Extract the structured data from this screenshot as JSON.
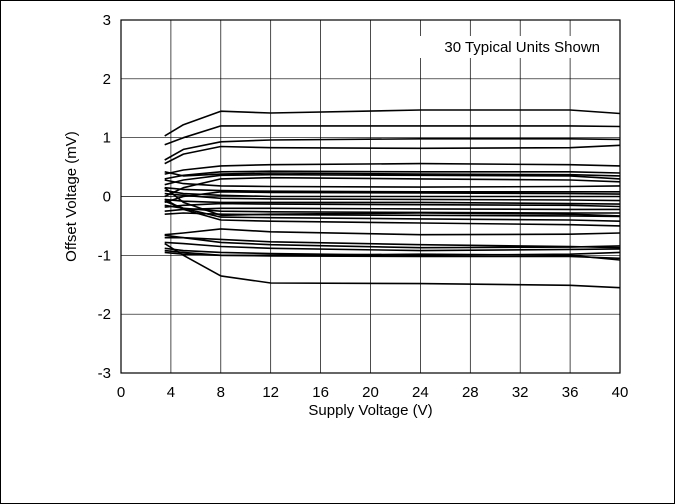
{
  "chart_data": {
    "type": "line",
    "title": "",
    "xlabel": "Supply Voltage (V)",
    "ylabel": "Offset Voltage (mV)",
    "xlim": [
      0,
      40
    ],
    "ylim": [
      -3,
      3
    ],
    "xticks": [
      "0",
      "4",
      "8",
      "12",
      "16",
      "20",
      "24",
      "28",
      "32",
      "36",
      "40"
    ],
    "yticks": [
      "3",
      "2",
      "1",
      "0",
      "-1",
      "-2",
      "-3"
    ],
    "grid": true,
    "legend": "none",
    "line_color": "#000000",
    "annotation": "30 Typical Units Shown",
    "x": [
      3.5,
      5,
      8,
      12,
      24,
      36,
      40
    ],
    "series": [
      {
        "values": [
          1.03,
          1.22,
          1.45,
          1.42,
          1.47,
          1.47,
          1.41
        ]
      },
      {
        "values": [
          0.88,
          1.0,
          1.2,
          1.2,
          1.2,
          1.2,
          1.19
        ]
      },
      {
        "values": [
          0.62,
          0.8,
          0.93,
          0.96,
          0.98,
          0.98,
          0.97
        ]
      },
      {
        "values": [
          0.56,
          0.72,
          0.85,
          0.83,
          0.82,
          0.83,
          0.87
        ]
      },
      {
        "values": [
          0.38,
          0.45,
          0.52,
          0.54,
          0.56,
          0.54,
          0.52
        ]
      },
      {
        "values": [
          0.3,
          0.36,
          0.42,
          0.43,
          0.42,
          0.42,
          0.4
        ]
      },
      {
        "values": [
          0.42,
          0.35,
          0.38,
          0.4,
          0.38,
          0.37,
          0.35
        ]
      },
      {
        "values": [
          0.2,
          0.28,
          0.36,
          0.37,
          0.36,
          0.35,
          0.3
        ]
      },
      {
        "values": [
          0.0,
          0.15,
          0.3,
          0.32,
          0.3,
          0.28,
          0.25
        ]
      },
      {
        "values": [
          0.28,
          0.22,
          0.18,
          0.17,
          0.16,
          0.17,
          0.18
        ]
      },
      {
        "values": [
          0.15,
          0.12,
          0.1,
          0.09,
          0.08,
          0.08,
          0.08
        ]
      },
      {
        "values": [
          -0.1,
          0.0,
          0.08,
          0.07,
          0.06,
          0.05,
          0.04
        ]
      },
      {
        "values": [
          0.1,
          0.05,
          0.02,
          0.0,
          0.0,
          0.0,
          0.0
        ]
      },
      {
        "values": [
          0.05,
          0.02,
          -0.03,
          -0.04,
          -0.05,
          -0.06,
          -0.07
        ]
      },
      {
        "values": [
          -0.05,
          -0.08,
          -0.1,
          -0.1,
          -0.1,
          -0.12,
          -0.13
        ]
      },
      {
        "values": [
          -0.18,
          -0.15,
          -0.12,
          -0.13,
          -0.14,
          -0.15,
          -0.17
        ]
      },
      {
        "values": [
          -0.25,
          -0.22,
          -0.2,
          -0.2,
          -0.21,
          -0.22,
          -0.22
        ]
      },
      {
        "values": [
          -0.15,
          -0.2,
          -0.25,
          -0.26,
          -0.27,
          -0.28,
          -0.28
        ]
      },
      {
        "values": [
          -0.3,
          -0.28,
          -0.3,
          -0.31,
          -0.32,
          -0.33,
          -0.34
        ]
      },
      {
        "values": [
          -0.08,
          -0.2,
          -0.35,
          -0.36,
          -0.38,
          -0.4,
          -0.42
        ]
      },
      {
        "values": [
          -0.05,
          -0.22,
          -0.4,
          -0.42,
          -0.45,
          -0.48,
          -0.5
        ]
      },
      {
        "values": [
          0.15,
          -0.1,
          -0.32,
          -0.3,
          -0.28,
          -0.3,
          -0.33
        ]
      },
      {
        "values": [
          -0.65,
          -0.62,
          -0.55,
          -0.6,
          -0.65,
          -0.64,
          -0.62
        ]
      },
      {
        "values": [
          -0.7,
          -0.7,
          -0.73,
          -0.77,
          -0.82,
          -0.85,
          -0.87
        ]
      },
      {
        "values": [
          -0.66,
          -0.7,
          -0.78,
          -0.82,
          -0.87,
          -0.86,
          -0.84
        ]
      },
      {
        "values": [
          -0.78,
          -0.8,
          -0.85,
          -0.88,
          -0.92,
          -0.9,
          -0.89
        ]
      },
      {
        "values": [
          -0.88,
          -0.92,
          -0.95,
          -0.97,
          -1.0,
          -0.98,
          -0.95
        ]
      },
      {
        "values": [
          -0.92,
          -0.95,
          -1.0,
          -1.01,
          -1.02,
          -1.02,
          -1.05
        ]
      },
      {
        "values": [
          -0.95,
          -0.98,
          -1.0,
          -1.0,
          -0.98,
          -1.0,
          -1.08
        ]
      },
      {
        "values": [
          -0.8,
          -1.0,
          -1.35,
          -1.47,
          -1.48,
          -1.51,
          -1.55
        ]
      }
    ]
  }
}
